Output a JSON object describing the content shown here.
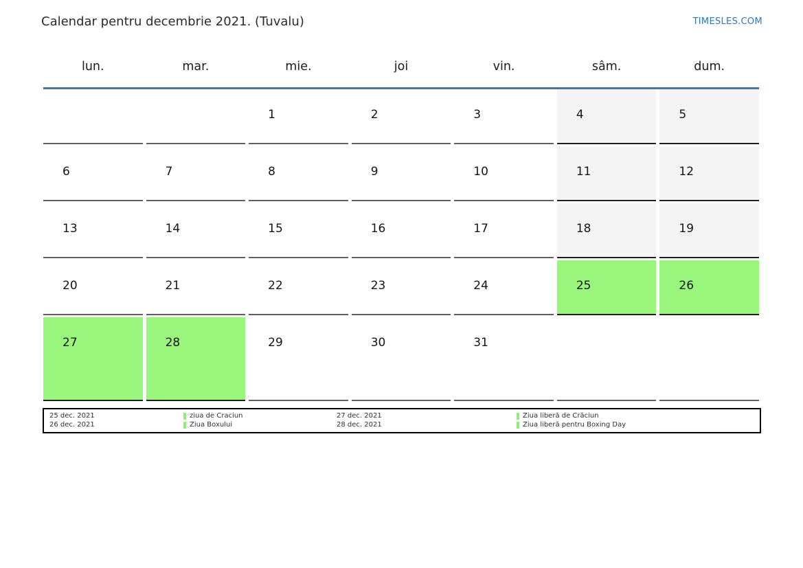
{
  "page": {
    "title": "Calendar pentru decembrie 2021. (Tuvalu)",
    "site_link": "TIMESLES.COM"
  },
  "colors": {
    "link_blue": "#2e75b6",
    "header_line_blue": "#4f729b",
    "weekend_gray": "#f4f4f4",
    "holiday_green": "#9af57d",
    "cell_border_dark": "#1f1f1f",
    "cell_border_normal": "#5f5f5f"
  },
  "calendar": {
    "month_year": "decembrie 2021",
    "weekdays": [
      "lun.",
      "mar.",
      "mie.",
      "joi",
      "vin.",
      "sâm.",
      "dum."
    ],
    "weeks": [
      [
        "",
        "",
        "1",
        "2",
        "3",
        "4",
        "5"
      ],
      [
        "6",
        "7",
        "8",
        "9",
        "10",
        "11",
        "12"
      ],
      [
        "13",
        "14",
        "15",
        "16",
        "17",
        "18",
        "19"
      ],
      [
        "20",
        "21",
        "22",
        "23",
        "24",
        "25",
        "26"
      ],
      [
        "27",
        "28",
        "29",
        "30",
        "31",
        "",
        ""
      ]
    ],
    "weekend_day_numbers": [
      4,
      5,
      11,
      12,
      18,
      19
    ],
    "holiday_day_numbers": [
      25,
      26,
      27,
      28
    ]
  },
  "legend": {
    "entries": [
      {
        "date": "25 dec. 2021",
        "label": "ziua de Craciun"
      },
      {
        "date": "26 dec. 2021",
        "label": "Ziua Boxului"
      },
      {
        "date": "27 dec. 2021",
        "label": "Ziua liberă de Crăciun"
      },
      {
        "date": "28 dec. 2021",
        "label": "Ziua liberă pentru Boxing Day"
      }
    ]
  }
}
